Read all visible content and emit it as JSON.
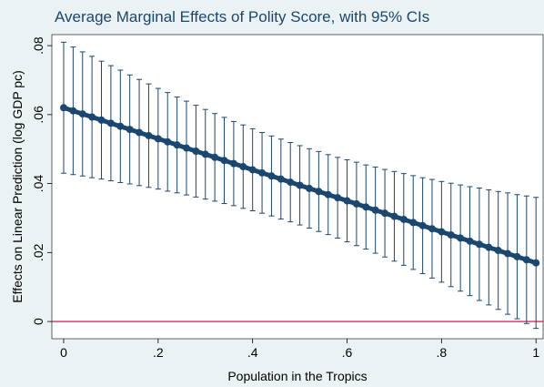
{
  "chart_data": {
    "type": "errorbar-line",
    "title": "Average Marginal Effects of Polity Score, with 95% CIs",
    "xlabel": "Population in the Tropics",
    "ylabel": "Effects on Linear Prediction (log GDP pc)",
    "color": "#1a476f",
    "refline": 0,
    "refline_color": "#c10534",
    "xlim": [
      -0.025,
      1.015
    ],
    "ylim": [
      -0.005,
      0.0832
    ],
    "xticks": [
      0,
      {
        "value": 0.2,
        "label": ".2"
      },
      {
        "value": 0.4,
        "label": ".4"
      },
      {
        "value": 0.6,
        "label": ".6"
      },
      {
        "value": 0.8,
        "label": ".8"
      },
      1
    ],
    "yticks": [
      0,
      {
        "value": 0.02,
        "label": ".02"
      },
      {
        "value": 0.04,
        "label": ".04"
      },
      {
        "value": 0.06,
        "label": ".06"
      },
      {
        "value": 0.08,
        "label": ".08"
      }
    ],
    "x": [
      0,
      0.02,
      0.04,
      0.06,
      0.08,
      0.1,
      0.12,
      0.14,
      0.16,
      0.18,
      0.2,
      0.22,
      0.24,
      0.26,
      0.28,
      0.3,
      0.32,
      0.34,
      0.36,
      0.38,
      0.4,
      0.42,
      0.44,
      0.46,
      0.48,
      0.5,
      0.52,
      0.54,
      0.56,
      0.58,
      0.6,
      0.62,
      0.64,
      0.66,
      0.68,
      0.7,
      0.72,
      0.74,
      0.76,
      0.78,
      0.8,
      0.82,
      0.84,
      0.86,
      0.88,
      0.9,
      0.92,
      0.94,
      0.96,
      0.98,
      1
    ],
    "values": [
      0.062,
      0.0611,
      0.0602,
      0.0593,
      0.0584,
      0.0575,
      0.0566,
      0.0557,
      0.0548,
      0.0539,
      0.053,
      0.0521,
      0.0512,
      0.0503,
      0.0494,
      0.0485,
      0.0476,
      0.0467,
      0.0458,
      0.0449,
      0.044,
      0.0431,
      0.0422,
      0.0413,
      0.0404,
      0.0395,
      0.0386,
      0.0377,
      0.0368,
      0.0359,
      0.035,
      0.0341,
      0.0332,
      0.0323,
      0.0314,
      0.0305,
      0.0296,
      0.0287,
      0.0278,
      0.0269,
      0.026,
      0.0251,
      0.0242,
      0.0233,
      0.0224,
      0.0215,
      0.0206,
      0.0197,
      0.0188,
      0.0179,
      0.017
    ],
    "lower": [
      0.043,
      0.0426,
      0.0422,
      0.0417,
      0.0413,
      0.0408,
      0.0403,
      0.0399,
      0.0394,
      0.0389,
      0.0384,
      0.0378,
      0.0373,
      0.0367,
      0.0361,
      0.0355,
      0.0349,
      0.0342,
      0.0336,
      0.0328,
      0.0321,
      0.0314,
      0.0306,
      0.0297,
      0.0289,
      0.028,
      0.0271,
      0.0261,
      0.0252,
      0.0242,
      0.0231,
      0.022,
      0.021,
      0.0198,
      0.0187,
      0.0175,
      0.0163,
      0.0151,
      0.0139,
      0.0126,
      0.0114,
      0.0101,
      0.0088,
      0.0075,
      0.0061,
      0.0048,
      0.0035,
      0.0021,
      0.0008,
      -0.0006,
      -0.002
    ],
    "upper": [
      0.081,
      0.0796,
      0.0782,
      0.0769,
      0.0755,
      0.0742,
      0.0729,
      0.0715,
      0.0702,
      0.0689,
      0.0676,
      0.0664,
      0.0651,
      0.0639,
      0.0627,
      0.0615,
      0.0603,
      0.0592,
      0.058,
      0.057,
      0.0559,
      0.0548,
      0.0538,
      0.0529,
      0.0519,
      0.051,
      0.0501,
      0.0493,
      0.0484,
      0.0476,
      0.0469,
      0.0462,
      0.0454,
      0.0448,
      0.0441,
      0.0435,
      0.0429,
      0.0423,
      0.0417,
      0.0412,
      0.0406,
      0.0401,
      0.0396,
      0.0391,
      0.0387,
      0.0382,
      0.0377,
      0.0373,
      0.0368,
      0.0364,
      0.036
    ]
  }
}
